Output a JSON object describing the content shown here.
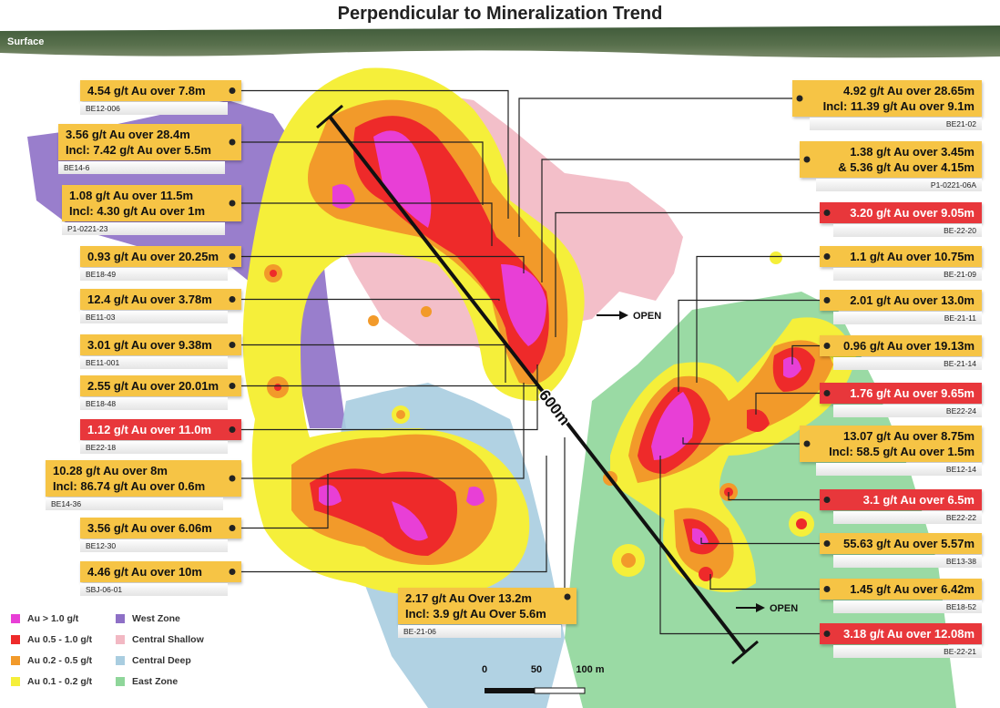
{
  "title": "Perpendicular to Mineralization Trend",
  "surface_label": "Surface",
  "callouts": [
    {
      "lines": [
        "4.54 g/t Au over 7.8m"
      ],
      "hole": "BE12-006",
      "color": "#f6c445"
    },
    {
      "lines": [
        "3.56 g/t Au over 28.4m",
        "Incl: 7.42 g/t Au over 5.5m"
      ],
      "hole": "BE14-6",
      "color": "#f6c445"
    },
    {
      "lines": [
        "1.08 g/t Au over 11.5m",
        "Incl: 4.30 g/t Au over 1m"
      ],
      "hole": "P1-0221-23",
      "color": "#f6c445"
    },
    {
      "lines": [
        "0.93 g/t Au over 20.25m"
      ],
      "hole": "BE18-49",
      "color": "#f6c445"
    },
    {
      "lines": [
        "12.4 g/t Au over 3.78m"
      ],
      "hole": "BE11-03",
      "color": "#f6c445"
    },
    {
      "lines": [
        "3.01 g/t Au over 9.38m"
      ],
      "hole": "BE11-001",
      "color": "#f6c445"
    },
    {
      "lines": [
        "2.55 g/t Au over 20.01m"
      ],
      "hole": "BE18-48",
      "color": "#f6c445"
    },
    {
      "lines": [
        "1.12 g/t Au over 11.0m"
      ],
      "hole": "BE22-18",
      "color": "#e8373b"
    },
    {
      "lines": [
        "10.28 g/t Au over 8m",
        "Incl: 86.74 g/t Au over 0.6m"
      ],
      "hole": "BE14-36",
      "color": "#f6c445"
    },
    {
      "lines": [
        "3.56 g/t Au over 6.06m"
      ],
      "hole": "BE12-30",
      "color": "#f6c445"
    },
    {
      "lines": [
        "4.46 g/t Au over 10m"
      ],
      "hole": "SBJ-06-01",
      "color": "#f6c445"
    },
    {
      "lines": [
        "2.17 g/t Au Over 13.2m",
        "Incl: 3.9 g/t Au Over 5.6m"
      ],
      "hole": "BE-21-06",
      "color": "#f6c445"
    },
    {
      "lines": [
        "4.92 g/t Au over 28.65m",
        "Incl: 11.39 g/t Au over 9.1m"
      ],
      "hole": "BE21-02",
      "color": "#f6c445"
    },
    {
      "lines": [
        "1.38 g/t Au over 3.45m",
        "& 5.36 g/t Au over 4.15m"
      ],
      "hole": "P1-0221-06A",
      "color": "#f6c445"
    },
    {
      "lines": [
        "3.20 g/t Au over 9.05m"
      ],
      "hole": "BE-22-20",
      "color": "#e8373b"
    },
    {
      "lines": [
        "1.1 g/t Au over 10.75m"
      ],
      "hole": "BE-21-09",
      "color": "#f6c445"
    },
    {
      "lines": [
        "2.01 g/t Au over 13.0m"
      ],
      "hole": "BE-21-11",
      "color": "#f6c445"
    },
    {
      "lines": [
        "0.96 g/t Au over 19.13m"
      ],
      "hole": "BE-21-14",
      "color": "#f6c445"
    },
    {
      "lines": [
        "1.76 g/t Au over 9.65m"
      ],
      "hole": "BE22-24",
      "color": "#e8373b"
    },
    {
      "lines": [
        "13.07 g/t Au over 8.75m",
        "Incl: 58.5 g/t Au over 1.5m"
      ],
      "hole": "BE12-14",
      "color": "#f6c445"
    },
    {
      "lines": [
        "3.1 g/t Au over 6.5m"
      ],
      "hole": "BE22-22",
      "color": "#e8373b"
    },
    {
      "lines": [
        "55.63 g/t Au over 5.57m"
      ],
      "hole": "BE13-38",
      "color": "#f6c445"
    },
    {
      "lines": [
        "1.45 g/t Au over 6.42m"
      ],
      "hole": "BE18-52",
      "color": "#f6c445"
    },
    {
      "lines": [
        "3.18 g/t Au over 12.08m"
      ],
      "hole": "BE-22-21",
      "color": "#e8373b"
    }
  ],
  "open_labels": [
    "OPEN",
    "OPEN"
  ],
  "section_length_label": "600m",
  "scale_labels": [
    "0",
    "50",
    "100 m"
  ],
  "legend": [
    {
      "label": "Au > 1.0 g/t",
      "color": "#e83fd6"
    },
    {
      "label": "Au 0.5 - 1.0 g/t",
      "color": "#ee2a2a"
    },
    {
      "label": "Au 0.2 - 0.5 g/t",
      "color": "#f29a2a"
    },
    {
      "label": "Au 0.1 - 0.2 g/t",
      "color": "#f5ef3a"
    },
    {
      "label": "West Zone",
      "color": "#8e70c6"
    },
    {
      "label": "Central Shallow",
      "color": "#f2b8c3"
    },
    {
      "label": "Central Deep",
      "color": "#a9cde0"
    },
    {
      "label": "East Zone",
      "color": "#8fd69a"
    }
  ]
}
